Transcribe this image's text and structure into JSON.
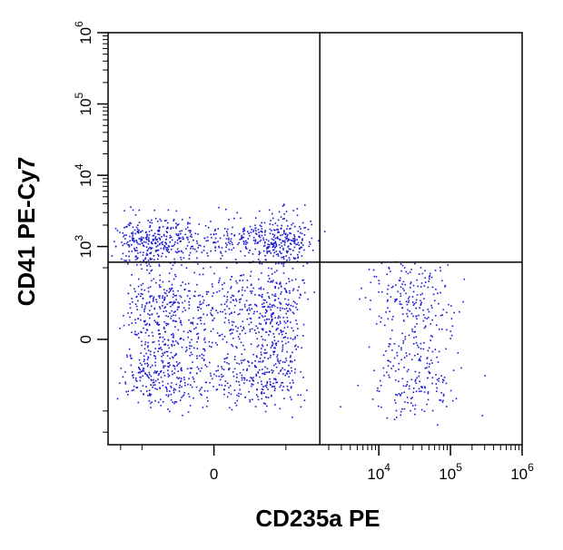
{
  "chart_data": {
    "type": "scatter",
    "xlabel": "CD235a PE",
    "ylabel": "CD41 PE-Cy7",
    "x_scale": "biexponential",
    "y_scale": "biexponential",
    "xlim": [
      -1500,
      1000000
    ],
    "ylim": [
      -1500,
      1000000
    ],
    "x_ticks": [
      {
        "value": 0,
        "base": "0",
        "exp": ""
      },
      {
        "value": 10000,
        "base": "10",
        "exp": "4"
      },
      {
        "value": 100000,
        "base": "10",
        "exp": "5"
      },
      {
        "value": 1000000,
        "base": "10",
        "exp": "6"
      }
    ],
    "y_ticks": [
      {
        "value": 0,
        "base": "0",
        "exp": ""
      },
      {
        "value": 1000,
        "base": "10",
        "exp": "3"
      },
      {
        "value": 10000,
        "base": "10",
        "exp": "4"
      },
      {
        "value": 100000,
        "base": "10",
        "exp": "5"
      },
      {
        "value": 1000000,
        "base": "10",
        "exp": "6"
      }
    ],
    "quadrant_gate": {
      "x": 1500,
      "y": 600
    },
    "grid": false,
    "point_color": "#1a1ad6",
    "populations": [
      {
        "center": [
          0,
          0
        ],
        "spread": [
          350,
          180
        ],
        "count": 1300
      },
      {
        "center": [
          0,
          1200
        ],
        "spread": [
          450,
          1.5
        ],
        "count": 750
      },
      {
        "center": [
          30000,
          0
        ],
        "spread": [
          2.0,
          250
        ],
        "count": 380
      }
    ]
  }
}
